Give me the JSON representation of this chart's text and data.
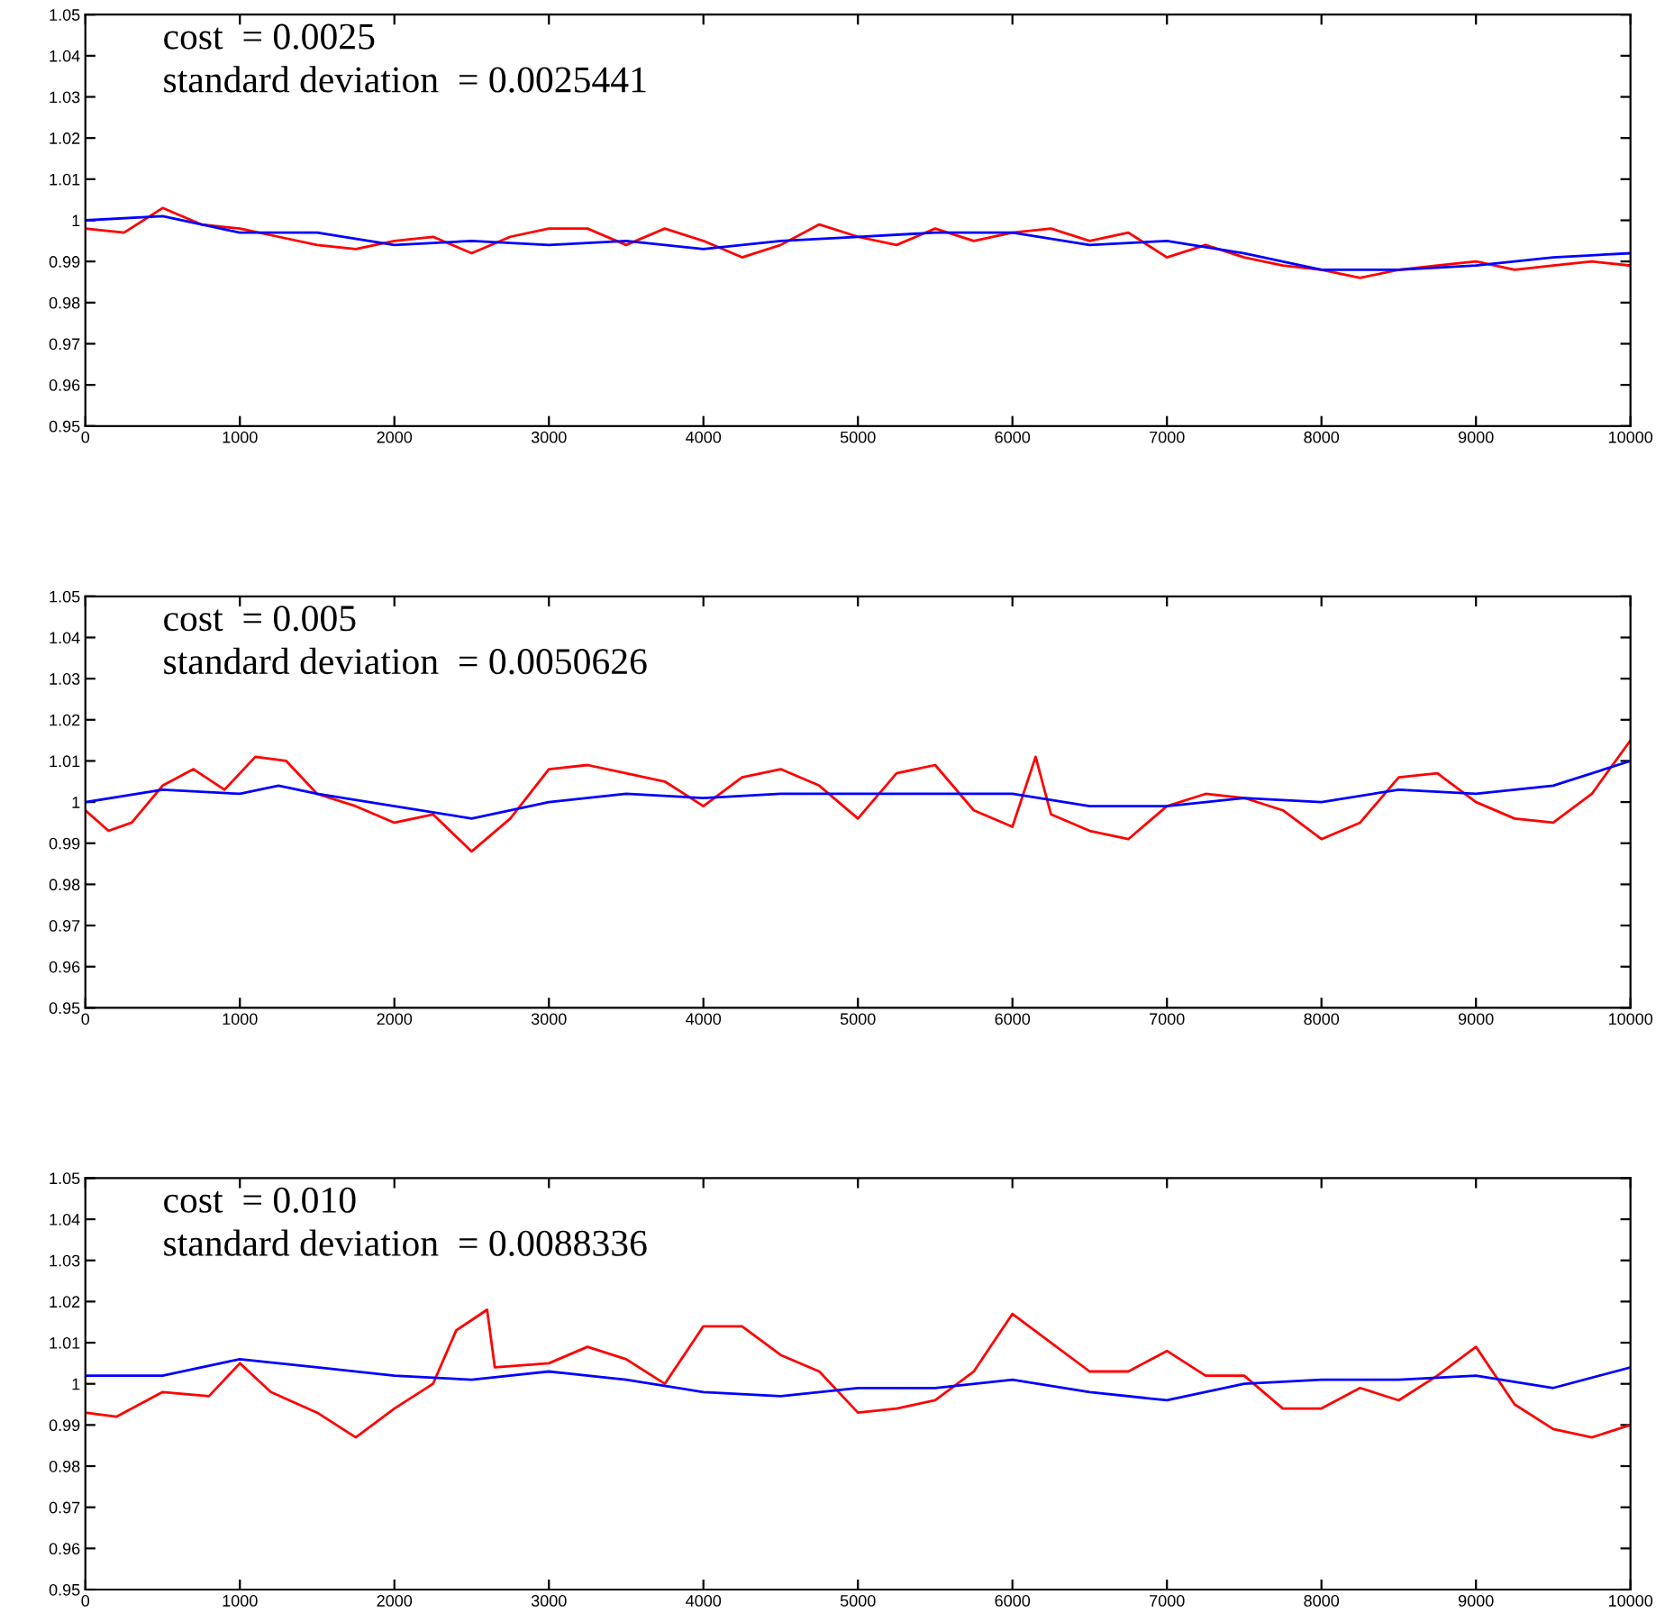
{
  "chart_data": [
    {
      "type": "line",
      "annotations": [
        "cost  = 0.0025",
        "standard deviation  = 0.0025441"
      ],
      "xlim": [
        0,
        10000
      ],
      "ylim": [
        0.95,
        1.05
      ],
      "xticks": [
        0,
        1000,
        2000,
        3000,
        4000,
        5000,
        6000,
        7000,
        8000,
        9000,
        10000
      ],
      "yticks": [
        0.95,
        0.96,
        0.97,
        0.98,
        0.99,
        1,
        1.01,
        1.02,
        1.03,
        1.04,
        1.05
      ],
      "grid": false,
      "series": [
        {
          "color": "#ff0000",
          "x": [
            0,
            250,
            500,
            750,
            1000,
            1250,
            1500,
            1750,
            2000,
            2250,
            2500,
            2750,
            3000,
            3250,
            3500,
            3750,
            4000,
            4250,
            4500,
            4750,
            5000,
            5250,
            5500,
            5750,
            6000,
            6250,
            6500,
            6750,
            7000,
            7250,
            7500,
            7750,
            8000,
            8250,
            8500,
            8750,
            9000,
            9250,
            9500,
            9750,
            10000
          ],
          "values": [
            0.998,
            0.997,
            1.003,
            0.999,
            0.998,
            0.996,
            0.994,
            0.993,
            0.995,
            0.996,
            0.992,
            0.996,
            0.998,
            0.998,
            0.994,
            0.998,
            0.995,
            0.991,
            0.994,
            0.999,
            0.996,
            0.994,
            0.998,
            0.995,
            0.997,
            0.998,
            0.995,
            0.997,
            0.991,
            0.994,
            0.991,
            0.989,
            0.988,
            0.986,
            0.988,
            0.989,
            0.99,
            0.988,
            0.989,
            0.99,
            0.989
          ]
        },
        {
          "color": "#0000ff",
          "x": [
            0,
            500,
            1000,
            1500,
            2000,
            2500,
            3000,
            3500,
            4000,
            4500,
            5000,
            5500,
            6000,
            6500,
            7000,
            7500,
            8000,
            8500,
            9000,
            9500,
            10000
          ],
          "values": [
            1.0,
            1.001,
            0.997,
            0.997,
            0.994,
            0.995,
            0.994,
            0.995,
            0.993,
            0.995,
            0.996,
            0.997,
            0.997,
            0.994,
            0.995,
            0.992,
            0.988,
            0.988,
            0.989,
            0.991,
            0.992
          ]
        }
      ]
    },
    {
      "type": "line",
      "annotations": [
        "cost  = 0.005",
        "standard deviation  = 0.0050626"
      ],
      "xlim": [
        0,
        10000
      ],
      "ylim": [
        0.95,
        1.05
      ],
      "xticks": [
        0,
        1000,
        2000,
        3000,
        4000,
        5000,
        6000,
        7000,
        8000,
        9000,
        10000
      ],
      "yticks": [
        0.95,
        0.96,
        0.97,
        0.98,
        0.99,
        1,
        1.01,
        1.02,
        1.03,
        1.04,
        1.05
      ],
      "grid": false,
      "series": [
        {
          "color": "#ff0000",
          "x": [
            0,
            150,
            300,
            500,
            700,
            900,
            1100,
            1300,
            1500,
            1750,
            2000,
            2250,
            2500,
            2750,
            3000,
            3250,
            3500,
            3750,
            4000,
            4250,
            4500,
            4750,
            5000,
            5250,
            5500,
            5750,
            6000,
            6150,
            6250,
            6500,
            6750,
            7000,
            7250,
            7500,
            7750,
            8000,
            8250,
            8500,
            8750,
            9000,
            9250,
            9500,
            9750,
            10000
          ],
          "values": [
            0.998,
            0.993,
            0.995,
            1.004,
            1.008,
            1.003,
            1.011,
            1.01,
            1.002,
            0.999,
            0.995,
            0.997,
            0.988,
            0.996,
            1.008,
            1.009,
            1.007,
            1.005,
            0.999,
            1.006,
            1.008,
            1.004,
            0.996,
            1.007,
            1.009,
            0.998,
            0.994,
            1.011,
            0.997,
            0.993,
            0.991,
            0.999,
            1.002,
            1.001,
            0.998,
            0.991,
            0.995,
            1.006,
            1.007,
            1.0,
            0.996,
            0.995,
            1.002,
            1.015
          ]
        },
        {
          "color": "#0000ff",
          "x": [
            0,
            500,
            1000,
            1250,
            1500,
            2000,
            2500,
            3000,
            3500,
            4000,
            4500,
            5000,
            5500,
            6000,
            6500,
            7000,
            7500,
            8000,
            8500,
            9000,
            9500,
            10000
          ],
          "values": [
            1.0,
            1.003,
            1.002,
            1.004,
            1.002,
            0.999,
            0.996,
            1.0,
            1.002,
            1.001,
            1.002,
            1.002,
            1.002,
            1.002,
            0.999,
            0.999,
            1.001,
            1.0,
            1.003,
            1.002,
            1.004,
            1.01
          ]
        }
      ]
    },
    {
      "type": "line",
      "annotations": [
        "cost  = 0.010",
        "standard deviation  = 0.0088336"
      ],
      "xlim": [
        0,
        10000
      ],
      "ylim": [
        0.95,
        1.05
      ],
      "xticks": [
        0,
        1000,
        2000,
        3000,
        4000,
        5000,
        6000,
        7000,
        8000,
        9000,
        10000
      ],
      "yticks": [
        0.95,
        0.96,
        0.97,
        0.98,
        0.99,
        1,
        1.01,
        1.02,
        1.03,
        1.04,
        1.05
      ],
      "grid": false,
      "series": [
        {
          "color": "#ff0000",
          "x": [
            0,
            200,
            500,
            800,
            1000,
            1200,
            1500,
            1750,
            2000,
            2250,
            2400,
            2600,
            2650,
            3000,
            3250,
            3500,
            3750,
            4000,
            4250,
            4500,
            4750,
            5000,
            5250,
            5500,
            5750,
            6000,
            6250,
            6500,
            6750,
            7000,
            7250,
            7500,
            7750,
            8000,
            8250,
            8500,
            8750,
            9000,
            9250,
            9500,
            9750,
            10000
          ],
          "values": [
            0.993,
            0.992,
            0.998,
            0.997,
            1.005,
            0.998,
            0.993,
            0.987,
            0.994,
            1.0,
            1.013,
            1.018,
            1.004,
            1.005,
            1.009,
            1.006,
            1.0,
            1.014,
            1.014,
            1.007,
            1.003,
            0.993,
            0.994,
            0.996,
            1.003,
            1.017,
            1.01,
            1.003,
            1.003,
            1.008,
            1.002,
            1.002,
            0.994,
            0.994,
            0.999,
            0.996,
            1.002,
            1.009,
            0.995,
            0.989,
            0.987,
            0.99
          ]
        },
        {
          "color": "#0000ff",
          "x": [
            0,
            500,
            1000,
            1500,
            2000,
            2500,
            3000,
            3500,
            4000,
            4500,
            5000,
            5500,
            6000,
            6500,
            7000,
            7500,
            8000,
            8500,
            9000,
            9500,
            10000
          ],
          "values": [
            1.002,
            1.002,
            1.006,
            1.004,
            1.002,
            1.001,
            1.003,
            1.001,
            0.998,
            0.997,
            0.999,
            0.999,
            1.001,
            0.998,
            0.996,
            1.0,
            1.001,
            1.001,
            1.002,
            0.999,
            1.004
          ]
        }
      ]
    }
  ]
}
